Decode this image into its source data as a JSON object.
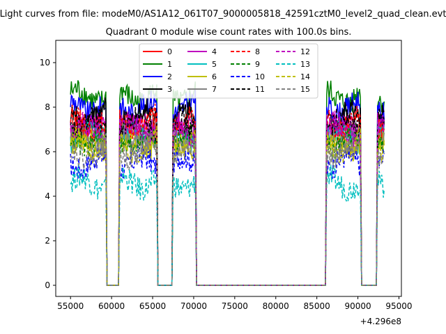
{
  "figure": {
    "suptitle": "Light curves from file: modeM0/AS1A12_061T07_9000005818_42591cztM0_level2_quad_clean.evt",
    "title": "Quadrant 0 module wise count rates with 100.0s bins.",
    "offset_label": "+4.296e8"
  },
  "chart_data": {
    "type": "line",
    "title": "Quadrant 0 module wise count rates with 100.0s bins.",
    "xlabel": "",
    "ylabel": "",
    "x_offset": 429600000,
    "xlim": [
      53200,
      95300
    ],
    "ylim": [
      -0.5,
      11.0
    ],
    "xticks": [
      55000,
      60000,
      65000,
      70000,
      75000,
      80000,
      85000,
      90000,
      95000
    ],
    "xtick_labels": [
      "55000",
      "60000",
      "65000",
      "70000",
      "75000",
      "80000",
      "85000",
      "90000",
      "95000"
    ],
    "yticks": [
      0,
      2,
      4,
      6,
      8,
      10
    ],
    "ytick_labels": [
      "0",
      "2",
      "4",
      "6",
      "8",
      "10"
    ],
    "grid": false,
    "legend_placement": "top-center",
    "bin_seconds": 100,
    "active_segments": [
      [
        55000,
        59300
      ],
      [
        61000,
        65500
      ],
      [
        67500,
        70200
      ],
      [
        86200,
        90300
      ],
      [
        92400,
        93200
      ]
    ],
    "gap_segments": [
      [
        59500,
        60900
      ],
      [
        65700,
        67400
      ],
      [
        70400,
        86000
      ],
      [
        90500,
        92300
      ]
    ],
    "series": [
      {
        "name": "0",
        "color": "#ff0000",
        "dash": "solid",
        "level": 7.1
      },
      {
        "name": "1",
        "color": "#008000",
        "dash": "solid",
        "level": 8.5
      },
      {
        "name": "2",
        "color": "#0000ff",
        "dash": "solid",
        "level": 8.0
      },
      {
        "name": "3",
        "color": "#000000",
        "dash": "solid",
        "level": 7.6
      },
      {
        "name": "4",
        "color": "#bf00bf",
        "dash": "solid",
        "level": 7.0
      },
      {
        "name": "5",
        "color": "#00bfbf",
        "dash": "solid",
        "level": 6.7
      },
      {
        "name": "6",
        "color": "#bfbf00",
        "dash": "solid",
        "level": 6.4
      },
      {
        "name": "7",
        "color": "#808080",
        "dash": "solid",
        "level": 6.6
      },
      {
        "name": "8",
        "color": "#ff0000",
        "dash": "dashed",
        "level": 7.3
      },
      {
        "name": "9",
        "color": "#008000",
        "dash": "dashed",
        "level": 6.5
      },
      {
        "name": "10",
        "color": "#0000ff",
        "dash": "dashed",
        "level": 5.5
      },
      {
        "name": "11",
        "color": "#000000",
        "dash": "dashed",
        "level": 7.2
      },
      {
        "name": "12",
        "color": "#bf00bf",
        "dash": "dashed",
        "level": 7.0
      },
      {
        "name": "13",
        "color": "#00bfbf",
        "dash": "dashed",
        "level": 4.6
      },
      {
        "name": "14",
        "color": "#bfbf00",
        "dash": "dashed",
        "level": 6.3
      },
      {
        "name": "15",
        "color": "#808080",
        "dash": "dashed",
        "level": 6.0
      }
    ]
  }
}
